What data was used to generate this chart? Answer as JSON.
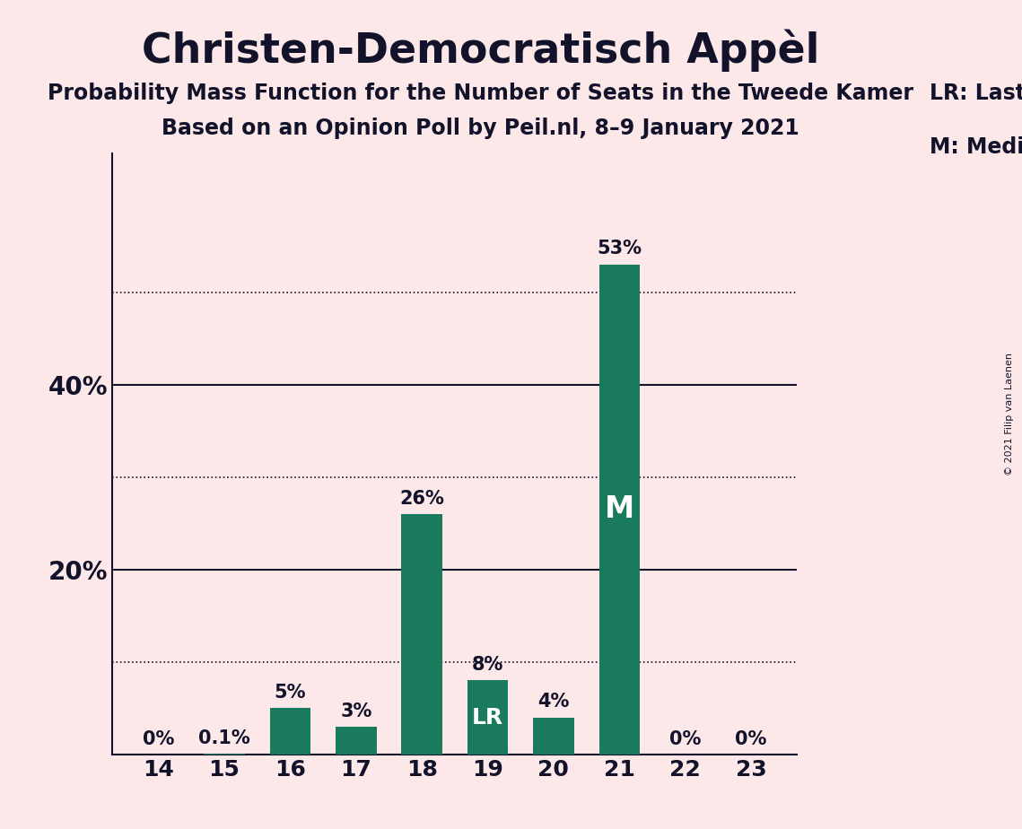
{
  "title": "Christen-Democratisch Appèl",
  "subtitle1": "Probability Mass Function for the Number of Seats in the Tweede Kamer",
  "subtitle2": "Based on an Opinion Poll by Peil.nl, 8–9 January 2021",
  "copyright": "© 2021 Filip van Laenen",
  "categories": [
    14,
    15,
    16,
    17,
    18,
    19,
    20,
    21,
    22,
    23
  ],
  "values": [
    0.0,
    0.1,
    5.0,
    3.0,
    26.0,
    8.0,
    4.0,
    53.0,
    0.0,
    0.0
  ],
  "labels": [
    "0%",
    "0.1%",
    "5%",
    "3%",
    "26%",
    "8%",
    "4%",
    "53%",
    "0%",
    "0%"
  ],
  "bar_color": "#1a7a5e",
  "background_color": "#fce8e8",
  "text_color": "#12122a",
  "lr_bar_index": 5,
  "median_bar_index": 7,
  "lr_label": "LR",
  "median_label": "M",
  "legend_lr": "LR: Last Result",
  "legend_m": "M: Median",
  "solid_yticks": [
    20,
    40
  ],
  "dotted_yticks": [
    10,
    30,
    50
  ],
  "ytick_labels_solid": {
    "20": "20%",
    "40": "40%"
  },
  "ylim": [
    0,
    65
  ],
  "grid_color": "#12122a",
  "axis_color": "#12122a"
}
